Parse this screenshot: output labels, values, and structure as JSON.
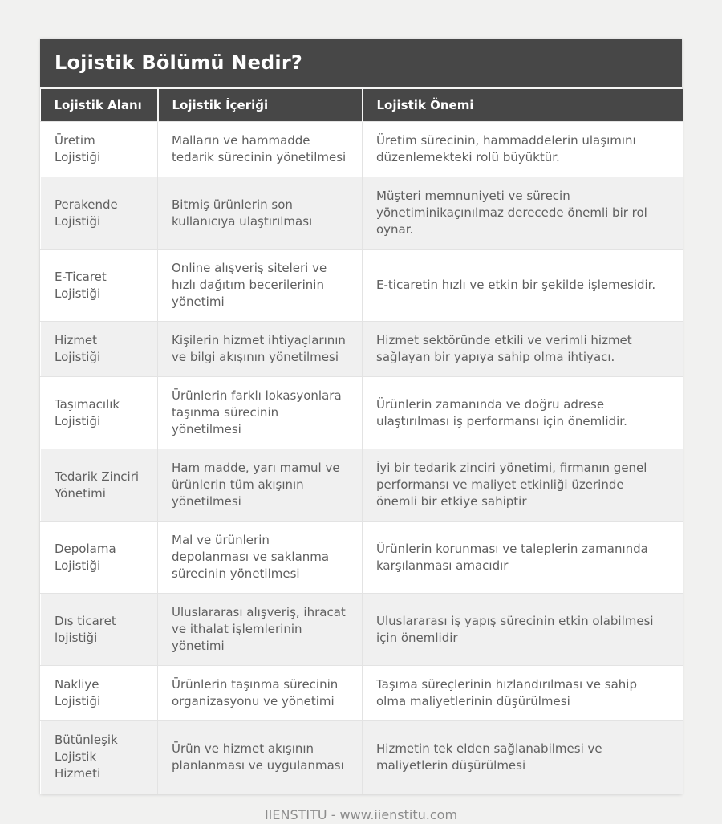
{
  "chart_data": {
    "type": "table",
    "title": "Lojistik Bölümü Nedir?",
    "columns": [
      "Lojistik Alanı",
      "Lojistik İçeriği",
      "Lojistik Önemi"
    ],
    "rows": [
      [
        "Üretim Lojistiği",
        "Malların ve hammadde tedarik sürecinin yönetilmesi",
        "Üretim sürecinin, hammaddelerin ulaşımını düzenlemekteki rolü büyüktür."
      ],
      [
        "Perakende Lojistiği",
        "Bitmiş ürünlerin son kullanıcıya ulaştırılması",
        "Müşteri memnuniyeti ve sürecin yönetiminikaçınılmaz derecede önemli bir rol oynar."
      ],
      [
        "E-Ticaret Lojistiği",
        "Online alışveriş siteleri ve hızlı dağıtım becerilerinin yönetimi",
        "E-ticaretin hızlı ve etkin bir şekilde işlemesidir."
      ],
      [
        "Hizmet Lojistiği",
        "Kişilerin hizmet ihtiyaçlarının ve bilgi akışının yönetilmesi",
        "Hizmet sektöründe etkili ve verimli hizmet sağlayan bir yapıya sahip olma ihtiyacı."
      ],
      [
        "Taşımacılık Lojistiği",
        "Ürünlerin farklı lokasyonlara taşınma sürecinin yönetilmesi",
        "Ürünlerin zamanında ve doğru adrese ulaştırılması iş performansı için önemlidir."
      ],
      [
        "Tedarik Zinciri Yönetimi",
        "Ham madde, yarı mamul ve ürünlerin tüm akışının yönetilmesi",
        "İyi bir tedarik zinciri yönetimi, firmanın genel performansı ve maliyet etkinliği üzerinde önemli bir etkiye sahiptir"
      ],
      [
        "Depolama Lojistiği",
        "Mal ve ürünlerin depolanması ve saklanma sürecinin yönetilmesi",
        "Ürünlerin korunması ve taleplerin zamanında karşılanması amacıdır"
      ],
      [
        "Dış ticaret lojistiği",
        "Uluslararası alışveriş, ihracat ve ithalat işlemlerinin yönetimi",
        "Uluslararası iş yapış sürecinin etkin olabilmesi için önemlidir"
      ],
      [
        "Nakliye Lojistiği",
        "Ürünlerin taşınma sürecinin organizasyonu ve yönetimi",
        "Taşıma süreçlerinin hızlandırılması ve sahip olma maliyetlerinin düşürülmesi"
      ],
      [
        "Bütünleşik Lojistik Hizmeti",
        "Ürün ve hizmet akışının planlanması ve uygulanması",
        "Hizmetin tek elden sağlanabilmesi ve maliyetlerin düşürülmesi"
      ]
    ],
    "layout": {
      "legend": "none",
      "grid": "cell-borders",
      "zebra_striping": true
    }
  },
  "footer": {
    "credit": "IIENSTITU - www.iienstitu.com"
  },
  "colors": {
    "header_background": "#474747",
    "header_text": "#ffffff",
    "row_alt_background": "#f0f0f0",
    "row_background": "#ffffff",
    "body_text": "#5f5f5f",
    "cell_border": "#e3e3e3",
    "page_background": "#f1f1f0",
    "footer_text": "#8c8c8c"
  }
}
